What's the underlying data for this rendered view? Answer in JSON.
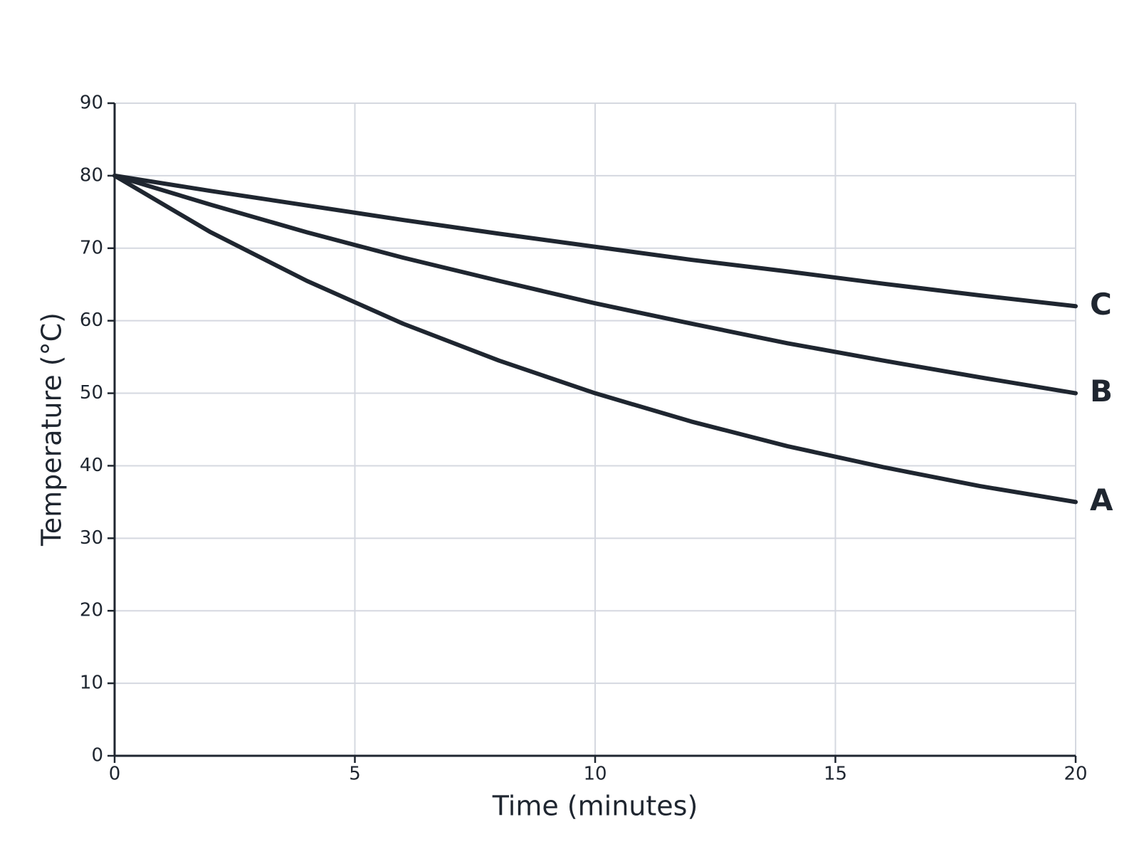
{
  "chart_data": {
    "type": "line",
    "x_label": "Time (minutes)",
    "y_label": "Temperature (°C)",
    "x": [
      0,
      2,
      4,
      6,
      8,
      10,
      12,
      14,
      16,
      18,
      20
    ],
    "series": [
      {
        "name": "A",
        "color": "#1f2630",
        "values": [
          80,
          72.2,
          65.5,
          59.6,
          54.5,
          50,
          46.1,
          42.7,
          39.8,
          37.2,
          35
        ]
      },
      {
        "name": "B",
        "color": "#1f2630",
        "values": [
          80,
          76.0,
          72.2,
          68.7,
          65.5,
          62.4,
          59.6,
          56.9,
          54.5,
          52.2,
          50
        ]
      },
      {
        "name": "C",
        "color": "#1f2630",
        "values": [
          80,
          77.9,
          75.9,
          73.9,
          72.0,
          70.2,
          68.4,
          66.8,
          65.1,
          63.5,
          62
        ]
      }
    ],
    "xlim": [
      0,
      20
    ],
    "xticks": [
      0,
      5,
      10,
      15,
      20
    ],
    "ylim": [
      0,
      90
    ],
    "yticks": [
      0,
      10,
      20,
      30,
      40,
      50,
      60,
      70,
      80,
      90
    ],
    "grid": true
  }
}
